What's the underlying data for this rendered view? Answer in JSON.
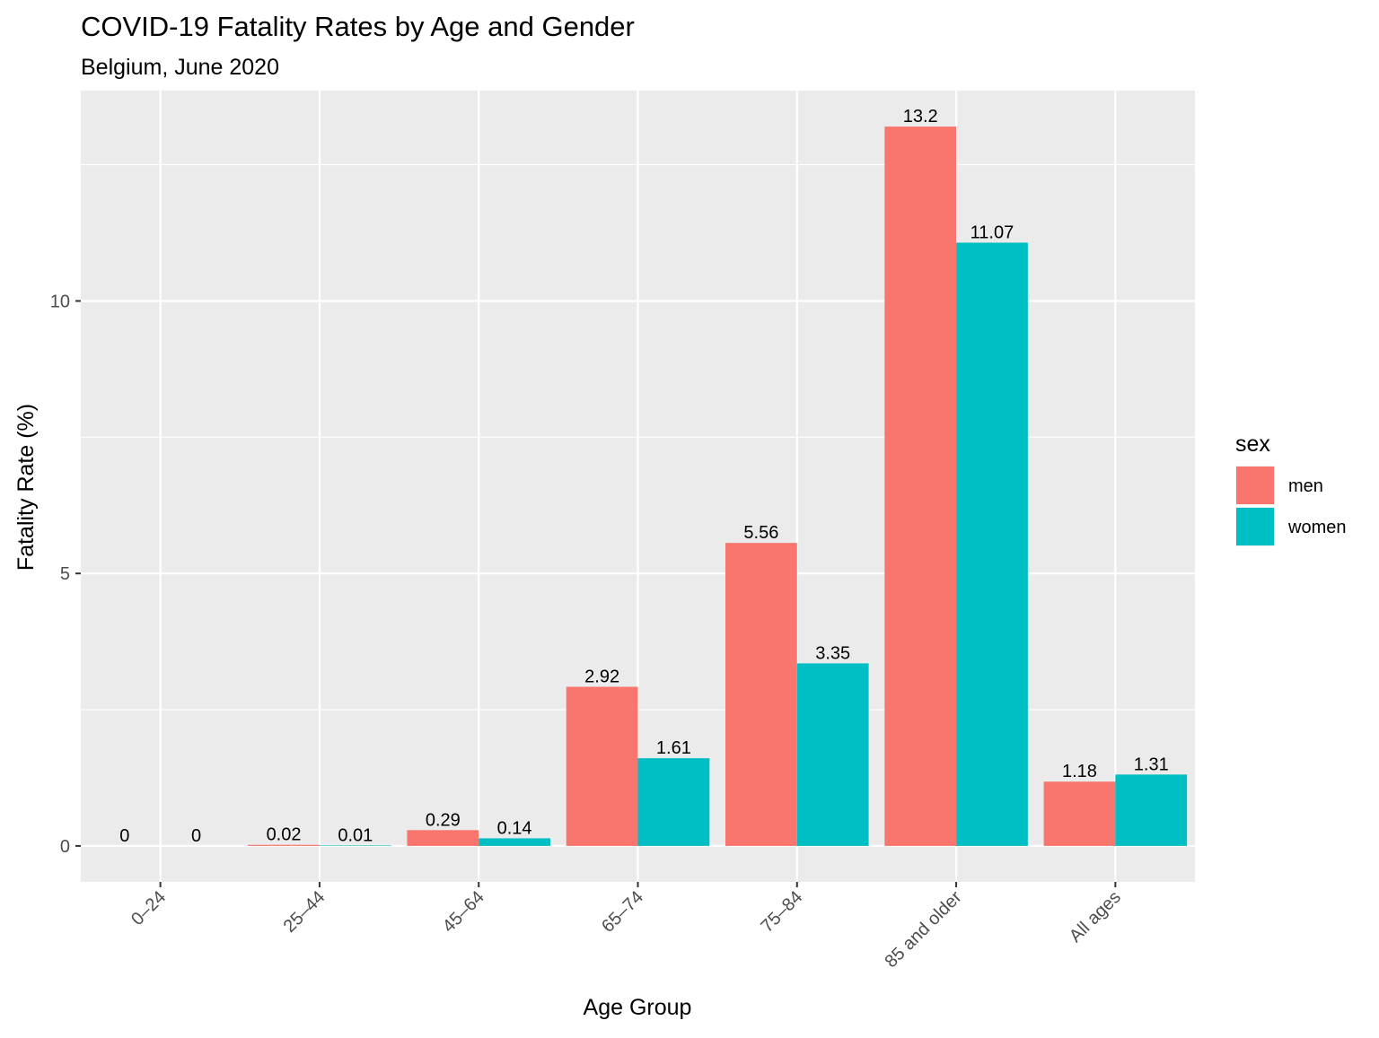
{
  "chart_data": {
    "type": "bar",
    "title": "COVID-19 Fatality Rates by Age and Gender",
    "subtitle": "Belgium, June 2020",
    "xlabel": "Age Group",
    "ylabel": "Fatality Rate (%)",
    "categories": [
      "0–24",
      "25–44",
      "45–64",
      "65–74",
      "75–84",
      "85 and older",
      "All ages"
    ],
    "series": [
      {
        "name": "men",
        "color": "#F8766D",
        "values": [
          0,
          0.02,
          0.29,
          2.92,
          5.56,
          13.2,
          1.18
        ],
        "labels": [
          "0",
          "0.02",
          "0.29",
          "2.92",
          "5.56",
          "13.2",
          "1.18"
        ]
      },
      {
        "name": "women",
        "color": "#00BFC4",
        "values": [
          0,
          0.01,
          0.14,
          1.61,
          3.35,
          11.07,
          1.31
        ],
        "labels": [
          "0",
          "0.01",
          "0.14",
          "1.61",
          "3.35",
          "11.07",
          "1.31"
        ]
      }
    ],
    "ylim": [
      -0.66,
      13.86
    ],
    "yticks": [
      0,
      5,
      10
    ],
    "ytick_labels": [
      "0",
      "5",
      "10"
    ],
    "legend": {
      "title": "sex",
      "position": "right"
    },
    "grid": true,
    "panel_background": "#EBEBEB",
    "grid_color": "#FFFFFF"
  }
}
